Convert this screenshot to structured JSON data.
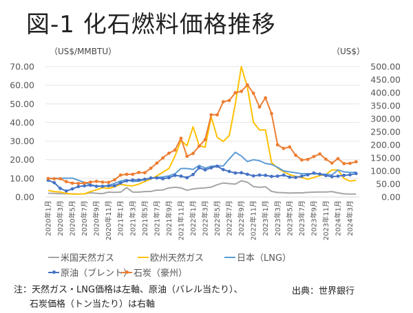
{
  "title": "図-1 化石燃料価格推移",
  "chart_data": {
    "type": "line",
    "title": "図-1 化石燃料価格推移",
    "left_axis": {
      "label": "（US$/MMBTU）",
      "range": [
        0,
        70
      ],
      "ticks": [
        "0.00",
        "10.00",
        "20.00",
        "30.00",
        "40.00",
        "50.00",
        "60.00",
        "70.00"
      ]
    },
    "right_axis": {
      "label": "（US$）",
      "range": [
        0,
        500
      ],
      "ticks": [
        "0.00",
        "50.00",
        "100.00",
        "150.00",
        "200.00",
        "250.00",
        "300.00",
        "350.00",
        "400.00",
        "450.00",
        "500.00"
      ]
    },
    "grid": true,
    "legend_position": "bottom",
    "x_tick_labels": [
      "2020年1月",
      "2020年3月",
      "2020年5月",
      "2020年7月",
      "2020年9月",
      "2020年11月",
      "2021年1月",
      "2021年3月",
      "2021年5月",
      "2021年7月",
      "2021年9月",
      "2021年11月",
      "2022年1月",
      "2022年3月",
      "2022年5月",
      "2022年7月",
      "2022年9月",
      "2022年11月",
      "2023年1月",
      "2023年3月",
      "2023年5月",
      "2023年7月",
      "2023年9月",
      "2023年11月",
      "2024年1月",
      "2024年3月"
    ],
    "n_points": 52,
    "series": [
      {
        "name": "米国天然ガス",
        "axis": "left",
        "color": "#a5a5a5",
        "marker": false,
        "values": [
          2.0,
          1.9,
          1.8,
          1.7,
          1.7,
          1.6,
          1.7,
          2.3,
          2.0,
          1.8,
          2.6,
          2.5,
          2.6,
          5.0,
          2.6,
          2.6,
          2.9,
          3.0,
          3.7,
          3.8,
          4.9,
          5.2,
          4.9,
          3.6,
          4.3,
          4.7,
          4.9,
          5.3,
          6.6,
          7.5,
          7.2,
          6.9,
          8.7,
          7.9,
          5.6,
          5.2,
          5.5,
          3.0,
          2.4,
          2.3,
          2.1,
          2.2,
          2.2,
          2.5,
          2.6,
          2.7,
          2.7,
          2.9,
          2.2,
          1.7,
          1.6,
          1.6
        ]
      },
      {
        "name": "欧州天然ガス",
        "axis": "left",
        "color": "#ffc000",
        "marker": false,
        "values": [
          3.5,
          2.9,
          2.7,
          1.9,
          1.6,
          1.6,
          1.7,
          2.9,
          3.9,
          5.0,
          4.6,
          5.5,
          6.8,
          6.2,
          6.0,
          6.9,
          8.3,
          9.6,
          11.3,
          13.3,
          15.3,
          22.0,
          30.3,
          27.5,
          37.7,
          27.6,
          26.7,
          43.0,
          32.0,
          29.8,
          33.0,
          50.0,
          70.0,
          59.0,
          40.0,
          36.0,
          36.0,
          18.5,
          15.5,
          13.5,
          12.0,
          11.0,
          10.5,
          9.5,
          10.5,
          11.5,
          12.0,
          14.5,
          14.5,
          10.0,
          8.5,
          9.0
        ]
      },
      {
        "name": "日本（LNG）",
        "axis": "left",
        "color": "#5b9bd5",
        "marker": false,
        "values": [
          10.0,
          10.0,
          10.1,
          10.1,
          10.1,
          9.0,
          7.8,
          6.6,
          5.9,
          5.8,
          6.2,
          7.3,
          8.6,
          9.3,
          8.3,
          8.5,
          9.3,
          10.0,
          10.5,
          10.8,
          11.3,
          12.5,
          15.3,
          15.3,
          14.8,
          17.0,
          15.5,
          16.5,
          16.8,
          16.6,
          20.5,
          24.0,
          22.0,
          19.0,
          20.0,
          19.5,
          18.0,
          17.5,
          16.0,
          14.0,
          13.5,
          13.0,
          12.5,
          12.5,
          12.5,
          12.3,
          12.2,
          11.8,
          14.5,
          13.5,
          13.2,
          13.3
        ]
      },
      {
        "name": "原油（ブレント）",
        "axis": "right",
        "color": "#4472c4",
        "marker": true,
        "values": [
          64,
          55,
          33,
          23,
          31,
          40,
          43,
          45,
          41,
          41,
          43,
          43,
          54,
          62,
          65,
          65,
          68,
          73,
          73,
          70,
          74,
          83,
          80,
          74,
          86,
          112,
          104,
          112,
          118,
          105,
          98,
          92,
          93,
          87,
          81,
          84,
          83,
          79,
          80,
          84,
          76,
          75,
          80,
          85,
          92,
          88,
          82,
          78,
          80,
          83,
          85,
          90
        ]
      },
      {
        "name": "石炭（豪州）",
        "axis": "right",
        "color": "#ed7d31",
        "marker": true,
        "values": [
          71,
          70,
          70,
          59,
          53,
          52,
          53,
          57,
          60,
          57,
          56,
          66,
          84,
          87,
          87,
          94,
          93,
          110,
          130,
          150,
          168,
          180,
          225,
          156,
          167,
          195,
          220,
          315,
          315,
          365,
          370,
          400,
          405,
          430,
          398,
          345,
          380,
          320,
          200,
          186,
          192,
          160,
          142,
          144,
          155,
          165,
          145,
          130,
          147,
          128,
          129,
          135
        ]
      }
    ]
  },
  "legend": [
    {
      "label": "米国天然ガス",
      "color": "#a5a5a5",
      "marker": false
    },
    {
      "label": "欧州天然ガス",
      "color": "#ffc000",
      "marker": false
    },
    {
      "label": "日本（LNG）",
      "color": "#5b9bd5",
      "marker": false
    },
    {
      "label": "原油（ブレント）",
      "color": "#4472c4",
      "marker": true
    },
    {
      "label": "石炭（豪州）",
      "color": "#ed7d31",
      "marker": true
    }
  ],
  "note_line1": "注：天然ガス・LNG価格は左軸、原油（バレル当たり）、",
  "note_line2": "石炭価格（トン当たり）は右軸",
  "source": "出典：世界銀行"
}
